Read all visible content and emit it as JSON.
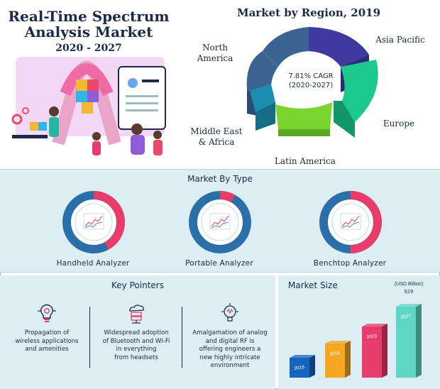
{
  "header": {
    "title_line1": "Real-Time Spectrum",
    "title_line2": "Analysis Market",
    "years": "2020 - 2027"
  },
  "colors": {
    "navy": "#1b2a48",
    "pink": "#e63d6a",
    "blue": "#2b6fa8",
    "green": "#7ac943",
    "teal": "#1fb8a0",
    "light_panel": "#dcedf3"
  },
  "chart_data": [
    {
      "type": "pie",
      "title": "Market by Region, 2019",
      "center_label_line1": "7.81% CAGR",
      "center_label_line2": "(2020-2027)",
      "categories": [
        "North America",
        "Asia Pacific",
        "Europe",
        "Latin America",
        "Middle East & Africa"
      ],
      "label_lines": {
        "north_america": [
          "North",
          "America"
        ],
        "asia_pacific": [
          "Asia Pacific"
        ],
        "europe": [
          "Europe"
        ],
        "latin_america": [
          "Latin America"
        ],
        "mea": [
          "Middle East",
          "& Africa"
        ]
      },
      "slice_colors": [
        "#3a6591",
        "#3e3a9e",
        "#1bc98e",
        "#7ad62f",
        "#1c8fb0"
      ]
    },
    {
      "type": "pie",
      "title": "Market By Type",
      "segments": [
        {
          "name": "Handheld Analyzer",
          "share": 0.42
        },
        {
          "name": "Portable Analyzer",
          "share": 0.08
        },
        {
          "name": "Benchtop Analyzer",
          "share": 0.5
        }
      ],
      "highlight_color": "#e63d6a",
      "base_color": "#2b6fa8"
    },
    {
      "type": "bar",
      "title": "Market Size",
      "unit_label": "(USD Billion)",
      "callout_value": "519",
      "categories": [
        "2016",
        "2019",
        "2023",
        "2027"
      ],
      "bar_colors": [
        "#1565c0",
        "#f5a623",
        "#e63d6a",
        "#5fd6c4"
      ]
    }
  ],
  "key_pointers": {
    "title": "Key Pointers",
    "items": [
      {
        "icon": "lightbulb-gear-icon",
        "text": "Propagation of wireless applications and amenities",
        "lines": [
          "Propagation of",
          "wireless applications",
          "and amenities"
        ]
      },
      {
        "icon": "cloud-server-icon",
        "text": "Widespread adoption of Bluetooth and Wi-Fi in everything from headsets",
        "lines": [
          "Widespread adoption",
          "of Bluetooth and Wi-Fi",
          "in everything",
          "from headsets"
        ]
      },
      {
        "icon": "bulb-circuit-icon",
        "text": "Amalgamation of analog and digital RF is offering engineers a new highly intricate environment",
        "lines": [
          "Amalgamation of analog",
          "and digital RF is",
          "offering engineers a",
          "new highly intricate",
          "environment"
        ]
      }
    ]
  }
}
